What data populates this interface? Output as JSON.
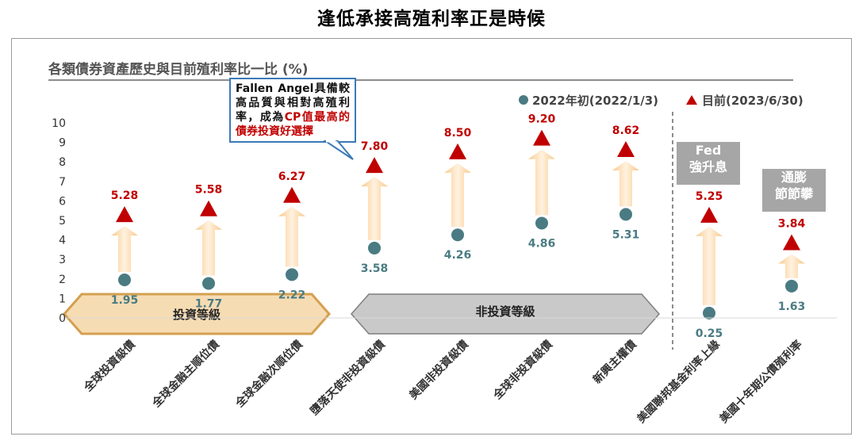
{
  "page": {
    "title": "逢低承接高殖利率正是時候"
  },
  "chart_data": {
    "type": "scatter",
    "title": "各類債券資產歷史與目前殖利率比一比 (%)",
    "categories": [
      "全球投資級債",
      "全球金融主順位債",
      "全球金融次順位債",
      "墮落天使非投資級債",
      "美國非投資級債",
      "全球非投資級債",
      "新興主權債",
      "美國聯邦基金利率上緣",
      "美國十年期公債殖利率"
    ],
    "series": [
      {
        "name": "2022年初(2022/1/3)",
        "marker": "circle",
        "color": "#4a7b82",
        "values": [
          1.95,
          1.77,
          2.22,
          3.58,
          4.26,
          4.86,
          5.31,
          0.25,
          1.63
        ],
        "labels": [
          "1.95",
          "1.77",
          "2.22",
          "3.58",
          "4.26",
          "4.86",
          "5.31",
          "0.25",
          "1.63"
        ]
      },
      {
        "name": "目前(2023/6/30)",
        "marker": "triangle",
        "color": "#c00000",
        "values": [
          5.28,
          5.58,
          6.27,
          7.8,
          8.5,
          9.2,
          8.62,
          5.25,
          3.84
        ],
        "labels": [
          "5.28",
          "5.58",
          "6.27",
          "7.80",
          "8.50",
          "9.20",
          "8.62",
          "5.25",
          "3.84"
        ]
      }
    ],
    "yticks": [
      "0",
      "1",
      "2",
      "3",
      "4",
      "5",
      "6",
      "7",
      "8",
      "9",
      "10"
    ],
    "ylim": [
      0,
      10
    ],
    "grid": false,
    "legend_position": "top-right",
    "group_labels": {
      "investment_grade": "投資等級",
      "non_investment_grade": "非投資等級"
    },
    "annotations": {
      "callout_pre": "Fallen Angel具備較高品質與相對高殖利率，成為",
      "callout_highlight": "CP值最高的債券投資好選擇",
      "fed_note": "Fed\n強升息",
      "inflation_note": "通膨\n節節攀"
    },
    "colors": {
      "arrow_light": "#fff2e0",
      "arrow_dark": "#f8c98c",
      "investment_band": "#f6dcb3",
      "investment_border": "#d4a050",
      "noninvestment_band": "#c9c9c9",
      "noninvestment_border": "#7f7f7f"
    }
  }
}
